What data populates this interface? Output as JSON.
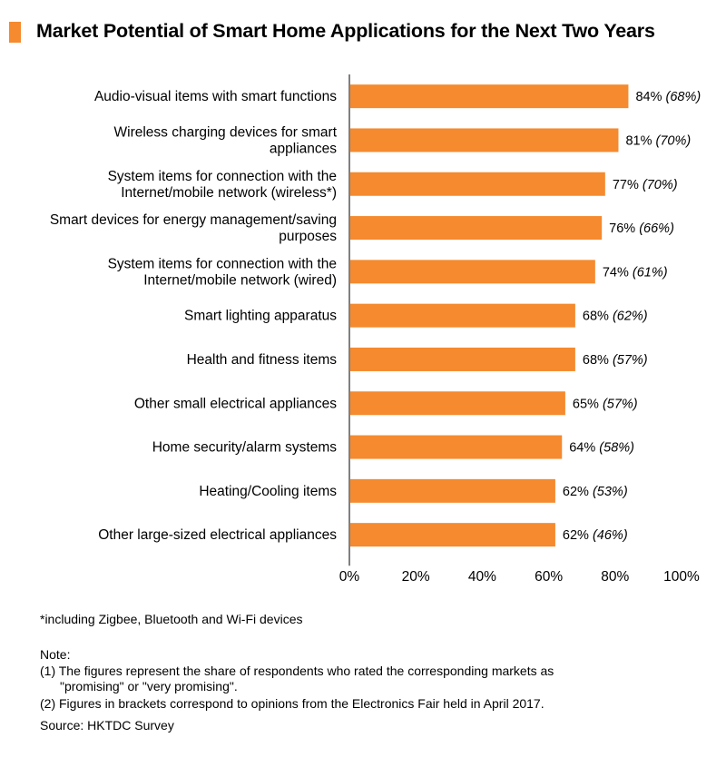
{
  "title": "Market Potential of Smart Home Applications for the Next Two Years",
  "colors": {
    "accent": "#F58A2E",
    "bar": "#F58A2E"
  },
  "chart_data": {
    "type": "bar",
    "orientation": "horizontal",
    "title": "Market Potential of Smart Home Applications for the Next Two Years",
    "categories": [
      [
        "Audio-visual items with smart functions"
      ],
      [
        "Wireless charging devices for smart",
        "appliances"
      ],
      [
        "System items for connection with the",
        "Internet/mobile network (wireless*)"
      ],
      [
        "Smart devices for energy management/saving",
        "purposes"
      ],
      [
        "System items for connection with the",
        "Internet/mobile network (wired)"
      ],
      [
        "Smart lighting apparatus"
      ],
      [
        "Health and fitness items"
      ],
      [
        "Other small electrical appliances"
      ],
      [
        "Home security/alarm systems"
      ],
      [
        "Heating/Cooling items"
      ],
      [
        "Other large-sized electrical appliances"
      ]
    ],
    "values": [
      84,
      81,
      77,
      76,
      74,
      68,
      68,
      65,
      64,
      62,
      62
    ],
    "bracket_values": [
      68,
      70,
      70,
      66,
      61,
      62,
      57,
      57,
      58,
      53,
      46
    ],
    "value_labels": [
      "84%",
      "81%",
      "77%",
      "76%",
      "74%",
      "68%",
      "68%",
      "65%",
      "64%",
      "62%",
      "62%"
    ],
    "bracket_labels": [
      "(68%)",
      "(70%)",
      "(70%)",
      "(66%)",
      "(61%)",
      "(62%)",
      "(57%)",
      "(57%)",
      "(58%)",
      "(53%)",
      "(46%)"
    ],
    "xlim": [
      0,
      100
    ],
    "x_ticks": [
      "0%",
      "20%",
      "40%",
      "60%",
      "80%",
      "100%"
    ],
    "grid": false,
    "xlabel": "",
    "ylabel": ""
  },
  "footnote": "*including Zigbee, Bluetooth and Wi-Fi devices",
  "notes": {
    "heading": "Note:",
    "note1_line1": "(1) The figures represent the share of respondents who rated the corresponding markets as",
    "note1_line2": "\"promising\" or \"very promising\".",
    "note2": "(2) Figures in brackets correspond to opinions from the Electronics Fair held in April 2017.",
    "source": "Source: HKTDC Survey"
  }
}
